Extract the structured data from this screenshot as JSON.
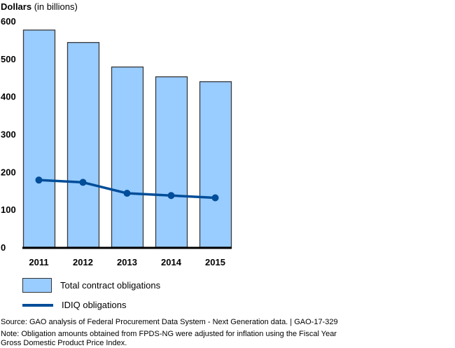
{
  "chart_data": {
    "type": "bar",
    "title": "",
    "ylabel_bold": "Dollars",
    "ylabel_rest": " (in billions)",
    "xlabel": "",
    "ylim": [
      0,
      600
    ],
    "yticks": [
      0,
      100,
      200,
      300,
      400,
      500,
      600
    ],
    "grid": false,
    "categories": [
      "2011",
      "2012",
      "2013",
      "2014",
      "2015"
    ],
    "series": [
      {
        "name": "Total contract obligations",
        "kind": "bar",
        "color": "#99ccff",
        "values": [
          576,
          543,
          478,
          452,
          439
        ]
      },
      {
        "name": "IDIQ obligations",
        "kind": "line",
        "color": "#004d99",
        "values": [
          178,
          172,
          143,
          137,
          131
        ]
      }
    ],
    "legend_position": "bottom-left"
  },
  "footer": {
    "source": "Source: GAO analysis of Federal Procurement Data System - Next Generation data.  |  GAO-17-329",
    "note_line1": "Note: Obligation amounts obtained from FPDS-NG were adjusted for inflation using the Fiscal Year",
    "note_line2": "Gross Domestic Product Price Index."
  }
}
